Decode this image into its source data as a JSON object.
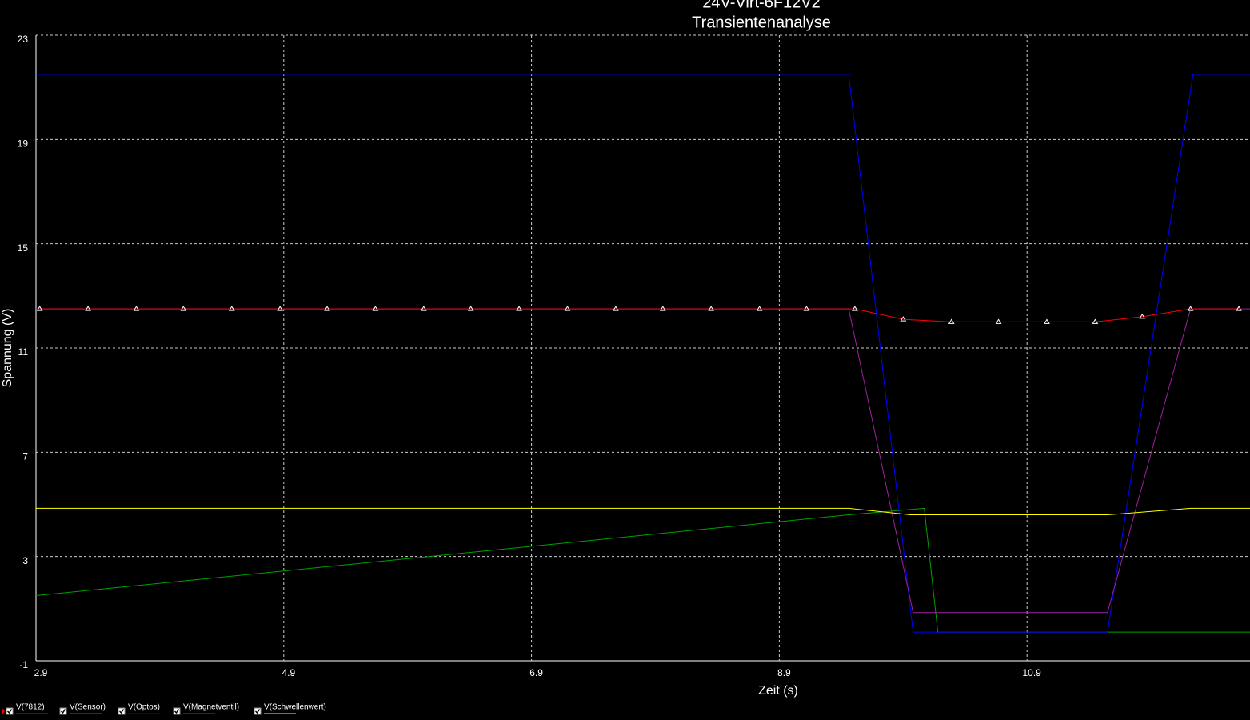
{
  "chart_data": {
    "type": "line",
    "title": "24V-Virt-6F12V2",
    "subtitle": "Transientenanalyse",
    "x_label": "Zeit (s)",
    "y_label": "Spannung (V)",
    "xlim": [
      2.9,
      12.7
    ],
    "ylim": [
      -1,
      23
    ],
    "xticks": [
      2.9,
      4.9,
      6.9,
      8.9,
      10.9
    ],
    "yticks": [
      -1,
      3,
      7,
      11,
      15,
      19,
      23
    ],
    "grid": true,
    "legend": "bottom",
    "series": [
      {
        "name": "V(7812)",
        "color": "#ff0000",
        "markers": true,
        "x": [
          2.93,
          3.32,
          3.71,
          4.09,
          4.48,
          4.87,
          5.25,
          5.64,
          6.03,
          6.41,
          6.8,
          7.19,
          7.58,
          7.96,
          8.35,
          8.74,
          9.12,
          9.51,
          9.9,
          10.29,
          10.67,
          11.06,
          11.45,
          11.83,
          12.22,
          12.61
        ],
        "values": [
          12.5,
          12.5,
          12.5,
          12.5,
          12.5,
          12.5,
          12.5,
          12.5,
          12.5,
          12.5,
          12.5,
          12.5,
          12.5,
          12.5,
          12.5,
          12.5,
          12.5,
          12.5,
          12.1,
          12.0,
          12.0,
          12.0,
          12.0,
          12.2,
          12.5,
          12.5
        ]
      },
      {
        "name": "V(Sensor)",
        "color": "#00a000",
        "x": [
          2.9,
          9.46,
          10.07,
          10.18,
          12.7
        ],
        "values": [
          1.5,
          4.6,
          4.85,
          0.1,
          0.1
        ]
      },
      {
        "name": "V(Optos)",
        "color": "#0000ff",
        "x": [
          2.9,
          9.46,
          9.98,
          11.55,
          12.24,
          12.7
        ],
        "values": [
          21.5,
          21.5,
          0.1,
          0.1,
          21.5,
          21.5
        ]
      },
      {
        "name": "V(Magnetventil)",
        "color": "#a020a0",
        "x": [
          2.9,
          9.46,
          9.98,
          11.55,
          12.22,
          12.7
        ],
        "values": [
          12.5,
          12.5,
          0.85,
          0.85,
          12.5,
          12.5
        ]
      },
      {
        "name": "V(Schwellenwert)",
        "color": "#ffff00",
        "x": [
          2.9,
          9.46,
          9.96,
          11.55,
          12.22,
          12.7
        ],
        "values": [
          4.85,
          4.85,
          4.6,
          4.6,
          4.85,
          4.85
        ]
      }
    ]
  }
}
